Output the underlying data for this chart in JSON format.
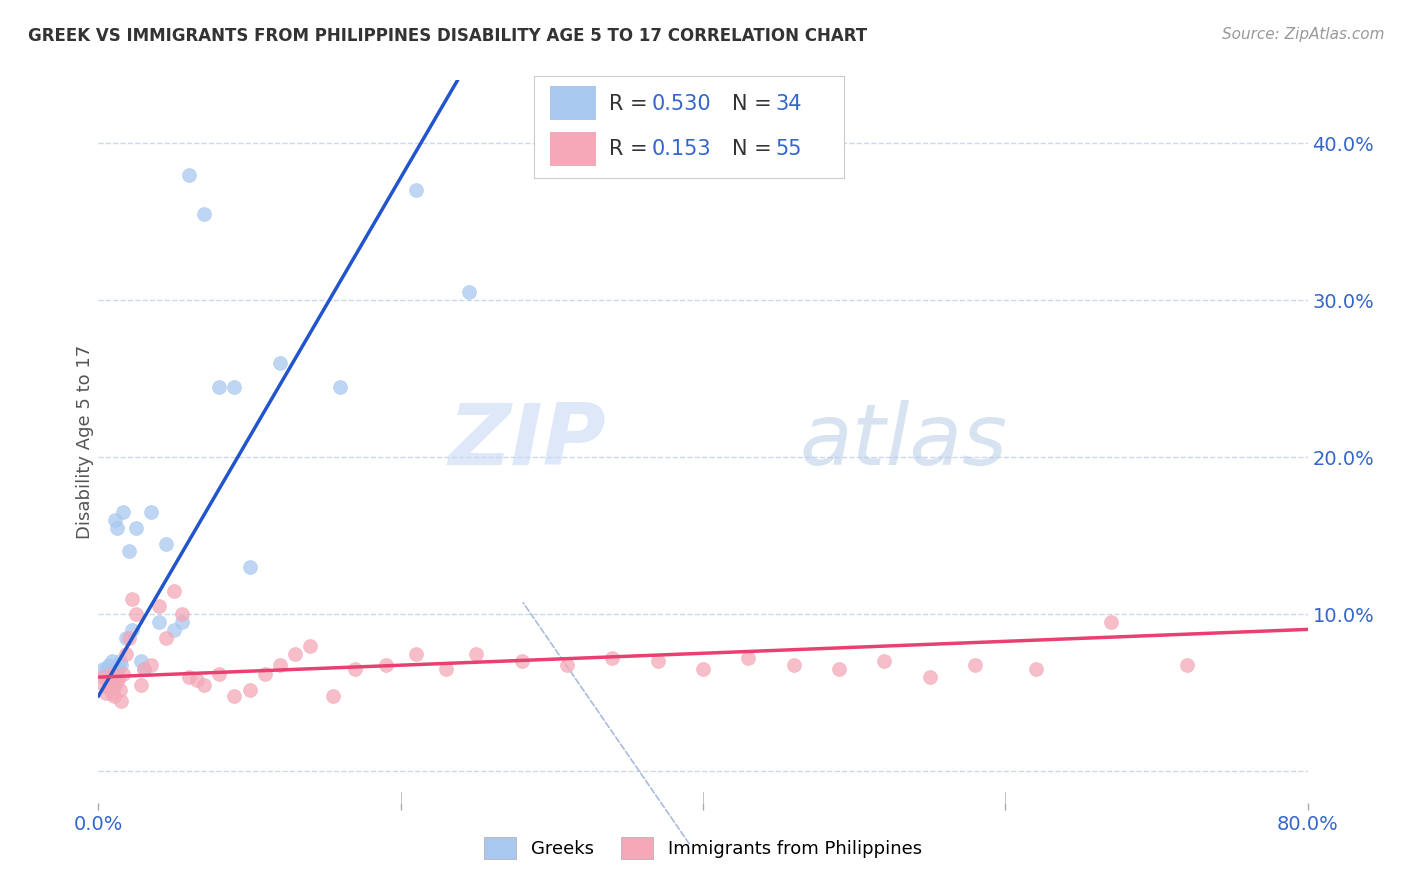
{
  "title": "GREEK VS IMMIGRANTS FROM PHILIPPINES DISABILITY AGE 5 TO 17 CORRELATION CHART",
  "source": "Source: ZipAtlas.com",
  "ylabel": "Disability Age 5 to 17",
  "xlim": [
    0.0,
    0.8
  ],
  "ylim": [
    -0.02,
    0.44
  ],
  "xticks": [
    0.0,
    0.2,
    0.4,
    0.6,
    0.8
  ],
  "xtick_labels": [
    "0.0%",
    "",
    "",
    "",
    "80.0%"
  ],
  "yticks": [
    0.0,
    0.1,
    0.2,
    0.3,
    0.4
  ],
  "ytick_labels": [
    "",
    "10.0%",
    "20.0%",
    "30.0%",
    "40.0%"
  ],
  "watermark_zip": "ZIP",
  "watermark_atlas": "atlas",
  "blue_color": "#a8c8f0",
  "pink_color": "#f4a8b8",
  "blue_line_color": "#2255cc",
  "pink_line_color": "#e84070",
  "grid_color": "#c8d8ee",
  "background_color": "#ffffff",
  "blue_points_x": [
    0.003,
    0.005,
    0.006,
    0.007,
    0.008,
    0.009,
    0.01,
    0.01,
    0.011,
    0.012,
    0.013,
    0.014,
    0.015,
    0.016,
    0.018,
    0.02,
    0.022,
    0.025,
    0.028,
    0.03,
    0.035,
    0.04,
    0.045,
    0.05,
    0.055,
    0.06,
    0.07,
    0.08,
    0.09,
    0.1,
    0.12,
    0.16,
    0.21,
    0.245
  ],
  "blue_points_y": [
    0.065,
    0.065,
    0.062,
    0.068,
    0.06,
    0.07,
    0.06,
    0.065,
    0.16,
    0.155,
    0.065,
    0.07,
    0.068,
    0.165,
    0.085,
    0.14,
    0.09,
    0.155,
    0.07,
    0.065,
    0.165,
    0.095,
    0.145,
    0.09,
    0.095,
    0.38,
    0.355,
    0.245,
    0.245,
    0.13,
    0.26,
    0.245,
    0.37,
    0.305
  ],
  "pink_points_x": [
    0.003,
    0.004,
    0.005,
    0.006,
    0.007,
    0.008,
    0.009,
    0.01,
    0.011,
    0.012,
    0.013,
    0.014,
    0.015,
    0.016,
    0.018,
    0.02,
    0.022,
    0.025,
    0.028,
    0.03,
    0.035,
    0.04,
    0.045,
    0.05,
    0.055,
    0.06,
    0.065,
    0.07,
    0.08,
    0.09,
    0.1,
    0.11,
    0.12,
    0.13,
    0.14,
    0.155,
    0.17,
    0.19,
    0.21,
    0.23,
    0.25,
    0.28,
    0.31,
    0.34,
    0.37,
    0.4,
    0.43,
    0.46,
    0.49,
    0.52,
    0.55,
    0.58,
    0.62,
    0.67,
    0.72
  ],
  "pink_points_y": [
    0.06,
    0.055,
    0.05,
    0.058,
    0.053,
    0.062,
    0.05,
    0.048,
    0.055,
    0.06,
    0.058,
    0.052,
    0.045,
    0.062,
    0.075,
    0.085,
    0.11,
    0.1,
    0.055,
    0.065,
    0.068,
    0.105,
    0.085,
    0.115,
    0.1,
    0.06,
    0.058,
    0.055,
    0.062,
    0.048,
    0.052,
    0.062,
    0.068,
    0.075,
    0.08,
    0.048,
    0.065,
    0.068,
    0.075,
    0.065,
    0.075,
    0.07,
    0.068,
    0.072,
    0.07,
    0.065,
    0.072,
    0.068,
    0.065,
    0.07,
    0.06,
    0.068,
    0.065,
    0.095,
    0.068
  ],
  "blue_marker_size": 100,
  "pink_marker_size": 100,
  "blue_reg_slope": 1.65,
  "blue_reg_intercept": 0.048,
  "pink_reg_slope": 0.038,
  "pink_reg_intercept": 0.06
}
